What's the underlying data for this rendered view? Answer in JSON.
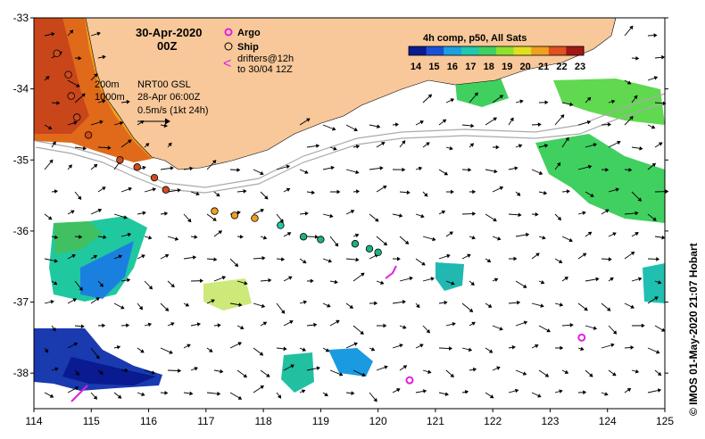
{
  "header": {
    "date": "30-Apr-2020",
    "time": "00Z",
    "composite": "4h comp, p50, All Sats"
  },
  "legend": {
    "argo": "Argo",
    "ship": "Ship",
    "drifters_line1": "drifters@12h",
    "drifters_line2": "to 30/04 12Z",
    "argo_color": "#e020e0",
    "ship_color": "#000000",
    "drifter_color": "#e020e0"
  },
  "annotations": {
    "iso_200": "200m",
    "iso_1000": "1000m",
    "model": "NRT00 GSL",
    "model_date": "28-Apr 06:00Z",
    "scale": "0.5m/s (1kt 24h)"
  },
  "colorbar": {
    "ticks": [
      "14",
      "15",
      "16",
      "17",
      "18",
      "19",
      "20",
      "21",
      "22",
      "23"
    ],
    "colors": [
      "#0a1a90",
      "#1a4fd8",
      "#1aa0e0",
      "#20c8b0",
      "#40d060",
      "#90e030",
      "#e0e020",
      "#f0a020",
      "#e05020",
      "#a01818"
    ]
  },
  "axes": {
    "x_ticks": [
      "114",
      "115",
      "116",
      "117",
      "118",
      "119",
      "120",
      "121",
      "122",
      "123",
      "124",
      "125"
    ],
    "y_ticks": [
      "-33",
      "-34",
      "-35",
      "-36",
      "-37",
      "-38"
    ]
  },
  "credit": "© IMOS 01-May-2020 21:07 Hobart",
  "colors": {
    "land": "#f8c89a",
    "frame": "#000000",
    "ocean": "#ffffff"
  },
  "ship_track": [
    {
      "lon": 114.4,
      "lat": -33.5
    },
    {
      "lon": 114.6,
      "lat": -33.8
    },
    {
      "lon": 114.65,
      "lat": -34.1
    },
    {
      "lon": 114.75,
      "lat": -34.4
    },
    {
      "lon": 114.95,
      "lat": -34.65
    },
    {
      "lon": 115.5,
      "lat": -35.0
    },
    {
      "lon": 115.8,
      "lat": -35.1
    },
    {
      "lon": 116.1,
      "lat": -35.25
    },
    {
      "lon": 116.3,
      "lat": -35.42
    },
    {
      "lon": 117.15,
      "lat": -35.72
    },
    {
      "lon": 117.5,
      "lat": -35.78
    },
    {
      "lon": 117.85,
      "lat": -35.82
    },
    {
      "lon": 118.3,
      "lat": -35.92
    },
    {
      "lon": 118.7,
      "lat": -36.08
    },
    {
      "lon": 119.0,
      "lat": -36.12
    },
    {
      "lon": 119.6,
      "lat": -36.18
    },
    {
      "lon": 119.85,
      "lat": -36.25
    },
    {
      "lon": 120.0,
      "lat": -36.3
    }
  ],
  "argo_floats": [
    {
      "lon": 123.55,
      "lat": -37.5
    },
    {
      "lon": 120.55,
      "lat": -38.1
    }
  ]
}
